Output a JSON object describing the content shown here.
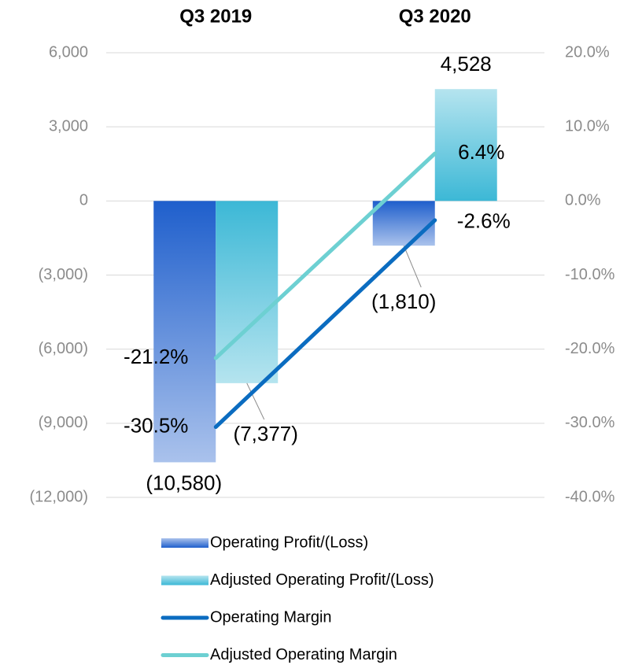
{
  "chart_data": {
    "type": "bar",
    "categories": [
      "Q3 2019",
      "Q3 2020"
    ],
    "series": [
      {
        "name": "Operating Profit/(Loss)",
        "type": "bar",
        "color": "#1f5fcc",
        "values": [
          -10580,
          -1810
        ],
        "value_labels": [
          "(10,580)",
          "(1,810)"
        ]
      },
      {
        "name": "Adjusted Operating Profit/(Loss)",
        "type": "bar",
        "color": "#3cb8d6",
        "values": [
          -7377,
          4528
        ],
        "value_labels": [
          "(7,377)",
          "4,528"
        ]
      },
      {
        "name": "Operating Margin",
        "type": "line",
        "axis": "y2",
        "color": "#0b6cc0",
        "values": [
          -30.5,
          -2.6
        ],
        "value_labels": [
          "-30.5%",
          "-2.6%"
        ]
      },
      {
        "name": "Adjusted Operating Margin",
        "type": "line",
        "axis": "y2",
        "color": "#6dd0d2",
        "values": [
          -21.2,
          6.4
        ],
        "value_labels": [
          "-21.2%",
          "6.4%"
        ]
      }
    ],
    "ylim": [
      -12000,
      6000
    ],
    "yticks": [
      {
        "value": -12000,
        "label": "(12,000)"
      },
      {
        "value": -9000,
        "label": "(9,000)"
      },
      {
        "value": -6000,
        "label": "(6,000)"
      },
      {
        "value": -3000,
        "label": "(3,000)"
      },
      0,
      {
        "value": 3000,
        "label": "3,000"
      },
      {
        "value": 6000,
        "label": "6,000"
      }
    ],
    "y2lim": [
      -40,
      20
    ],
    "y2ticks": [
      {
        "value": -40,
        "label": "-40.0%"
      },
      {
        "value": -30,
        "label": "-30.0%"
      },
      {
        "value": -20,
        "label": "-20.0%"
      },
      {
        "value": -10,
        "label": "-10.0%"
      },
      {
        "value": 0,
        "label": "0.0%"
      },
      {
        "value": 10,
        "label": "10.0%"
      },
      {
        "value": 20,
        "label": "20.0%"
      }
    ],
    "grid": true,
    "legend": "bottom"
  }
}
